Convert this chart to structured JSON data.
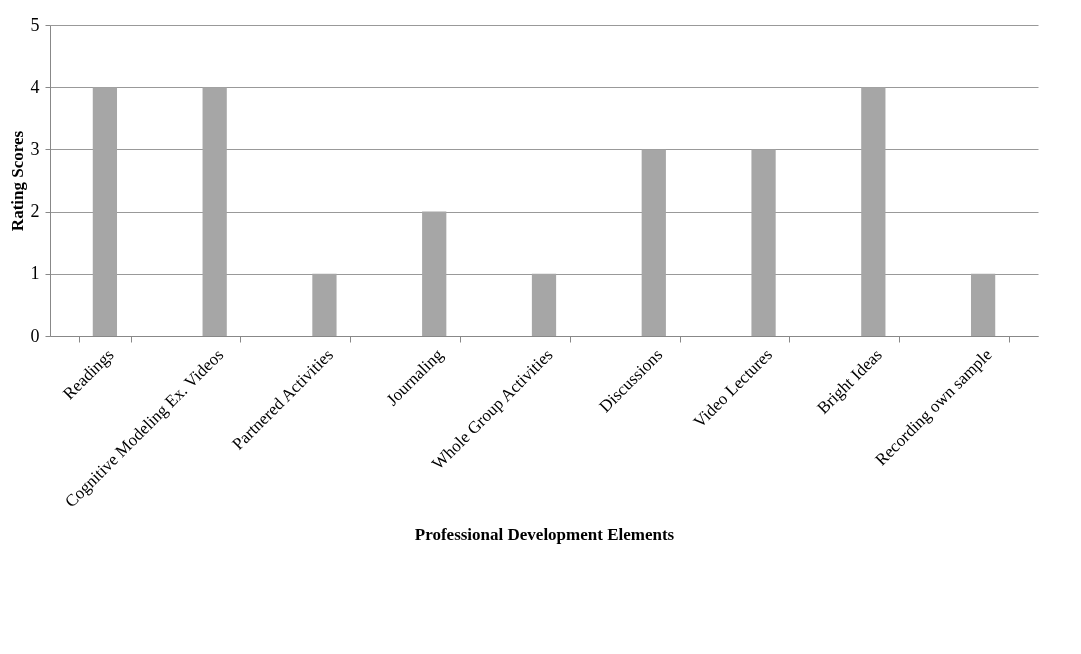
{
  "chart_data": {
    "type": "bar",
    "xlabel": "Professional Development Elements",
    "ylabel": "Rating Scores",
    "categories": [
      "Readings",
      "Cognitive Modeling Ex. Videos",
      "Partnered Activities",
      "Journaling",
      "Whole Group Activities",
      "Discussions",
      "Video Lectures",
      "Bright Ideas",
      "Recording own sample"
    ],
    "values": [
      4,
      4,
      1,
      2,
      1,
      3,
      3,
      4,
      1
    ],
    "color": "#a6a6a6",
    "ylim": [
      0,
      5
    ],
    "yticks": [
      0,
      1,
      2,
      3,
      4,
      5
    ],
    "grid": "y"
  }
}
